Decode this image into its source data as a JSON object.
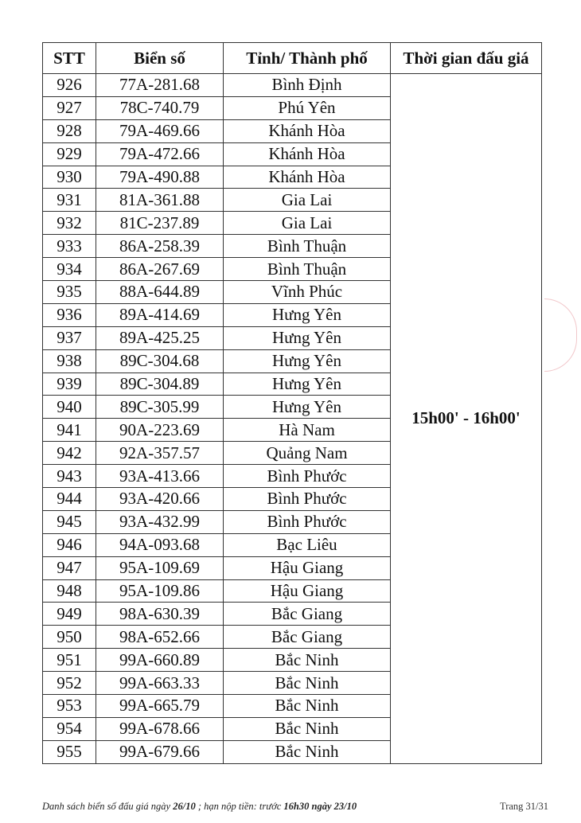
{
  "table": {
    "headers": [
      "STT",
      "Biển số",
      "Tỉnh/ Thành phố",
      "Thời gian đấu giá"
    ],
    "time_slot": "15h00' - 16h00'",
    "rows": [
      [
        "926",
        "77A-281.68",
        "Bình Định"
      ],
      [
        "927",
        "78C-740.79",
        "Phú Yên"
      ],
      [
        "928",
        "79A-469.66",
        "Khánh Hòa"
      ],
      [
        "929",
        "79A-472.66",
        "Khánh Hòa"
      ],
      [
        "930",
        "79A-490.88",
        "Khánh Hòa"
      ],
      [
        "931",
        "81A-361.88",
        "Gia Lai"
      ],
      [
        "932",
        "81C-237.89",
        "Gia Lai"
      ],
      [
        "933",
        "86A-258.39",
        "Bình Thuận"
      ],
      [
        "934",
        "86A-267.69",
        "Bình Thuận"
      ],
      [
        "935",
        "88A-644.89",
        "Vĩnh Phúc"
      ],
      [
        "936",
        "89A-414.69",
        "Hưng Yên"
      ],
      [
        "937",
        "89A-425.25",
        "Hưng Yên"
      ],
      [
        "938",
        "89C-304.68",
        "Hưng Yên"
      ],
      [
        "939",
        "89C-304.89",
        "Hưng Yên"
      ],
      [
        "940",
        "89C-305.99",
        "Hưng Yên"
      ],
      [
        "941",
        "90A-223.69",
        "Hà Nam"
      ],
      [
        "942",
        "92A-357.57",
        "Quảng Nam"
      ],
      [
        "943",
        "93A-413.66",
        "Bình Phước"
      ],
      [
        "944",
        "93A-420.66",
        "Bình Phước"
      ],
      [
        "945",
        "93A-432.99",
        "Bình Phước"
      ],
      [
        "946",
        "94A-093.68",
        "Bạc Liêu"
      ],
      [
        "947",
        "95A-109.69",
        "Hậu Giang"
      ],
      [
        "948",
        "95A-109.86",
        "Hậu Giang"
      ],
      [
        "949",
        "98A-630.39",
        "Bắc Giang"
      ],
      [
        "950",
        "98A-652.66",
        "Bắc Giang"
      ],
      [
        "951",
        "99A-660.89",
        "Bắc Ninh"
      ],
      [
        "952",
        "99A-663.33",
        "Bắc Ninh"
      ],
      [
        "953",
        "99A-665.79",
        "Bắc Ninh"
      ],
      [
        "954",
        "99A-678.66",
        "Bắc Ninh"
      ],
      [
        "955",
        "99A-679.66",
        "Bắc Ninh"
      ]
    ]
  },
  "footer": {
    "text_1": "Danh sách biển số đấu giá ngày ",
    "date_bold": "26/10",
    "text_2": " ; hạn nộp tiền: trước ",
    "deadline_bold": "16h30 ngày 23/10",
    "page": "Trang 31/31"
  }
}
